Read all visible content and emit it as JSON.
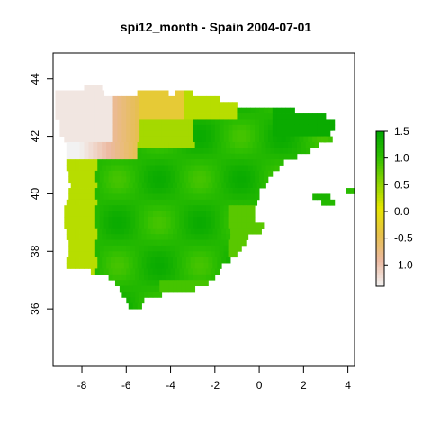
{
  "title": "spi12_month - Spain 2004-07-01",
  "chart_data": {
    "type": "heatmap",
    "title": "spi12_month - Spain 2004-07-01",
    "xlabel": "",
    "ylabel": "",
    "xlim": [
      -9.3,
      4.3
    ],
    "ylim": [
      34.0,
      44.9
    ],
    "x_ticks": [
      -8,
      -6,
      -4,
      -2,
      0,
      2,
      4
    ],
    "y_ticks": [
      36,
      38,
      40,
      42,
      44
    ],
    "legend": {
      "position": "right",
      "range": [
        -1.4,
        1.5
      ],
      "ticks": [
        1.5,
        1.0,
        0.5,
        0.0,
        -0.5,
        -1.0
      ],
      "tick_labels": [
        "1.5",
        "1.0",
        "0.5",
        "0.0",
        "-0.5",
        "-1.0"
      ],
      "colors": [
        "#f2f2f2",
        "#ecb9a0",
        "#e6c04a",
        "#e6e600",
        "#8cd400",
        "#2fbf00",
        "#00a600"
      ]
    },
    "grid": false
  }
}
